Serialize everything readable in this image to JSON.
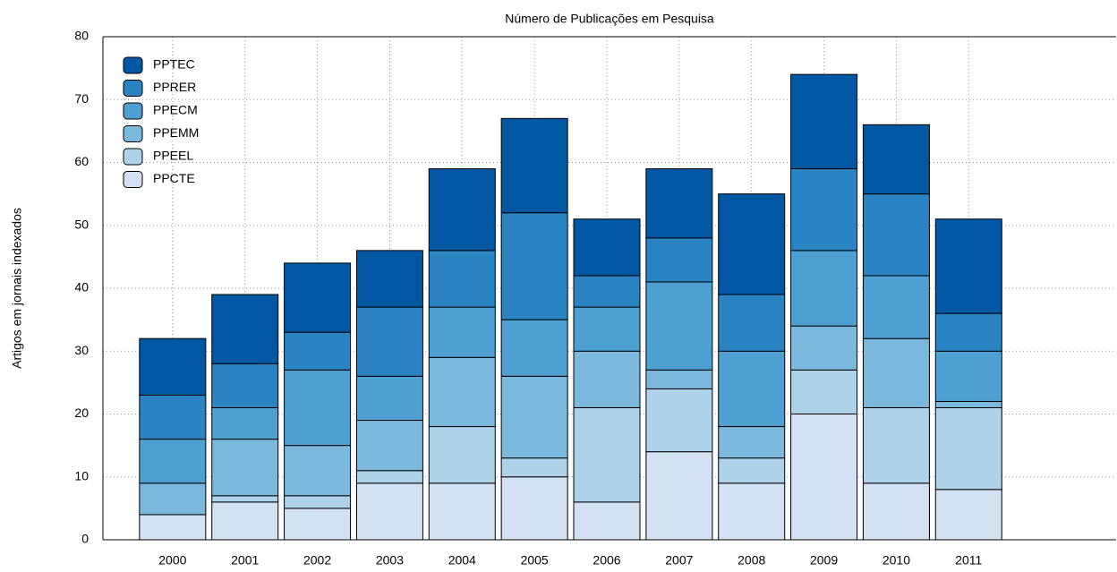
{
  "chart_data": {
    "type": "stacked_bar",
    "title": "Número de Publicações em Pesquisa",
    "y_label": "Artigos em jornais indexados",
    "categories": [
      "2000",
      "2001",
      "2002",
      "2003",
      "2004",
      "2005",
      "2006",
      "2007",
      "2008",
      "2009",
      "2010",
      "2011"
    ],
    "series": [
      {
        "name": "PPTEC",
        "color": "#0057a3",
        "values": [
          9,
          11,
          11,
          9,
          13,
          15,
          9,
          11,
          16,
          15,
          11,
          15
        ]
      },
      {
        "name": "PPRER",
        "color": "#2a84c3",
        "values": [
          7,
          7,
          6,
          11,
          9,
          17,
          5,
          7,
          9,
          13,
          13,
          6
        ]
      },
      {
        "name": "PPECM",
        "color": "#4fa0d2",
        "values": [
          7,
          5,
          12,
          7,
          8,
          9,
          7,
          14,
          12,
          12,
          10,
          8
        ]
      },
      {
        "name": "PPEMM",
        "color": "#7ab8de",
        "values": [
          5,
          9,
          8,
          8,
          11,
          13,
          9,
          3,
          5,
          7,
          11,
          1
        ]
      },
      {
        "name": "PPEEL",
        "color": "#aed3e8",
        "values": [
          0,
          1,
          2,
          2,
          9,
          3,
          15,
          10,
          4,
          7,
          12,
          13
        ]
      },
      {
        "name": "PPCTE",
        "color": "#d2e2f2",
        "values": [
          4,
          6,
          5,
          9,
          9,
          10,
          6,
          14,
          9,
          20,
          9,
          8
        ]
      }
    ],
    "ylim": [
      0,
      80
    ],
    "yticks": [
      0,
      10,
      20,
      30,
      40,
      50,
      60,
      70,
      80
    ],
    "grid": true,
    "legend": "upper left"
  }
}
